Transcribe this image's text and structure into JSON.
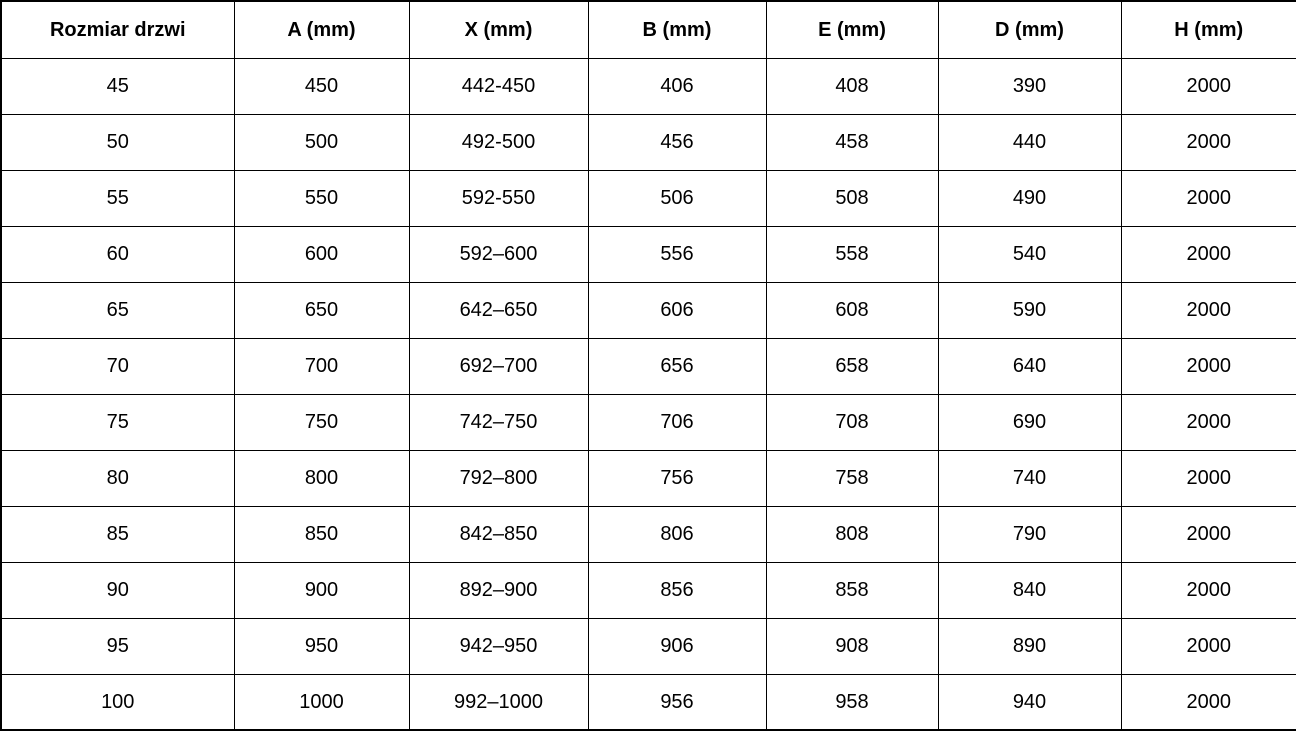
{
  "table": {
    "columns": [
      "Rozmiar drzwi",
      "A (mm)",
      "X (mm)",
      "B (mm)",
      "E (mm)",
      "D (mm)",
      "H (mm)"
    ],
    "rows": [
      [
        "45",
        "450",
        "442-450",
        "406",
        "408",
        "390",
        "2000"
      ],
      [
        "50",
        "500",
        "492-500",
        "456",
        "458",
        "440",
        "2000"
      ],
      [
        "55",
        "550",
        "592-550",
        "506",
        "508",
        "490",
        "2000"
      ],
      [
        "60",
        "600",
        "592–600",
        "556",
        "558",
        "540",
        "2000"
      ],
      [
        "65",
        "650",
        "642–650",
        "606",
        "608",
        "590",
        "2000"
      ],
      [
        "70",
        "700",
        "692–700",
        "656",
        "658",
        "640",
        "2000"
      ],
      [
        "75",
        "750",
        "742–750",
        "706",
        "708",
        "690",
        "2000"
      ],
      [
        "80",
        "800",
        "792–800",
        "756",
        "758",
        "740",
        "2000"
      ],
      [
        "85",
        "850",
        "842–850",
        "806",
        "808",
        "790",
        "2000"
      ],
      [
        "90",
        "900",
        "892–900",
        "856",
        "858",
        "840",
        "2000"
      ],
      [
        "95",
        "950",
        "942–950",
        "906",
        "908",
        "890",
        "2000"
      ],
      [
        "100",
        "1000",
        "992–1000",
        "956",
        "958",
        "940",
        "2000"
      ]
    ],
    "colors": {
      "border": "#000000",
      "background": "#ffffff",
      "text": "#000000"
    }
  }
}
